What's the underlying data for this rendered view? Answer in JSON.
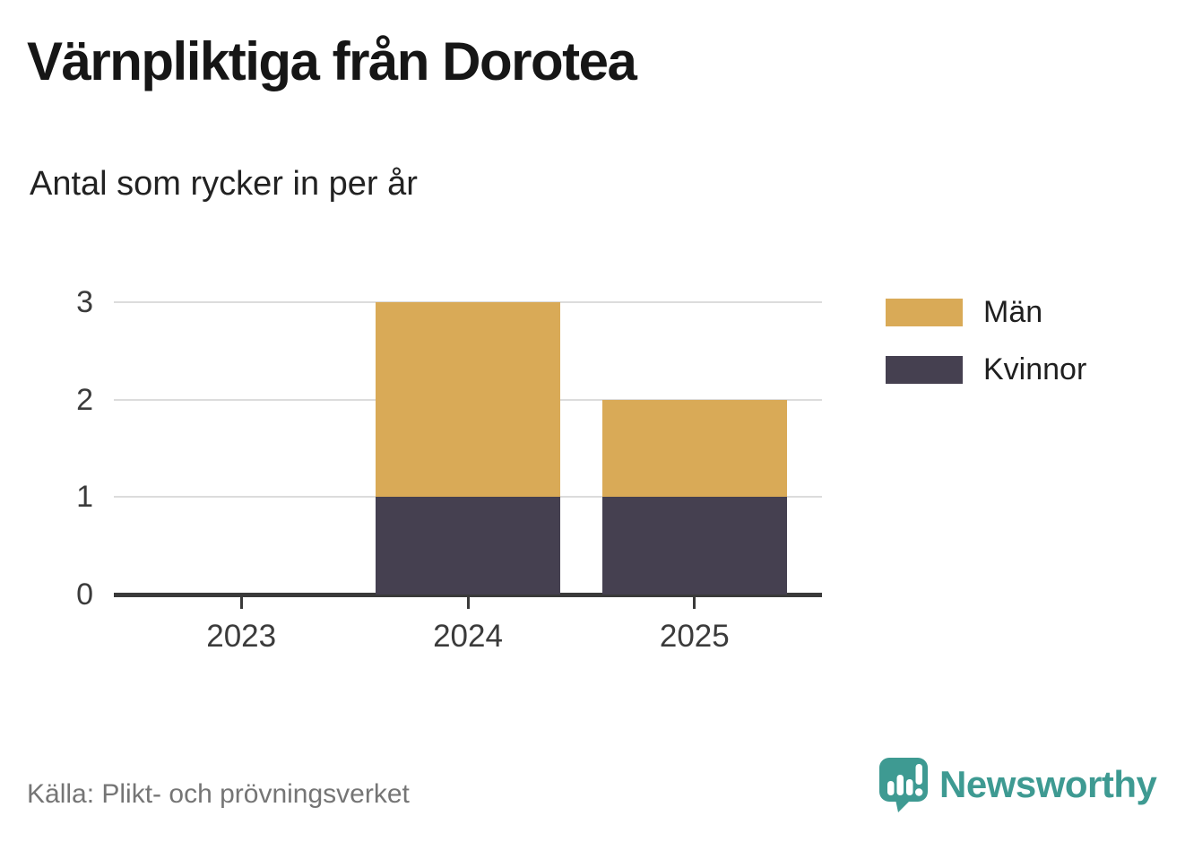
{
  "chart_data": {
    "type": "bar",
    "stacked": true,
    "title": "Värnpliktiga från Dorotea",
    "subtitle": "Antal som rycker in per år",
    "categories": [
      "2023",
      "2024",
      "2025"
    ],
    "series": [
      {
        "name": "Män",
        "color": "#d9aa57",
        "values": [
          0,
          2,
          1
        ]
      },
      {
        "name": "Kvinnor",
        "color": "#454050",
        "values": [
          0,
          1,
          1
        ]
      }
    ],
    "stack_order_bottom_to_top": [
      "Kvinnor",
      "Män"
    ],
    "totals": [
      0,
      3,
      2
    ],
    "y_ticks": [
      0,
      1,
      2,
      3
    ],
    "ylim": [
      0,
      3
    ],
    "xlabel": "",
    "ylabel": "",
    "grid": true,
    "gridline_color": "#dcdcdc",
    "axis_color": "#3a3a3a",
    "legend_position": "right"
  },
  "footer": {
    "source": "Källa: Plikt- och prövningsverket",
    "brand": "Newsworthy",
    "brand_color": "#3e9a92"
  }
}
